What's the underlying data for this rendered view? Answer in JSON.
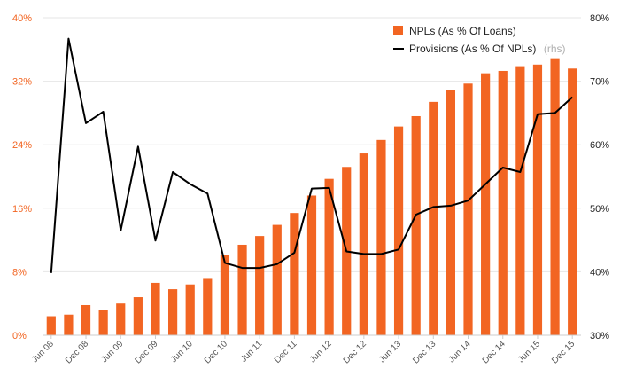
{
  "chart_data": {
    "type": "bar+line",
    "title": "",
    "x": [
      "Jun 08",
      "Sep 08",
      "Dec 08",
      "Mar 09",
      "Jun 09",
      "Sep 09",
      "Dec 09",
      "Mar 10",
      "Jun 10",
      "Sep 10",
      "Dec 10",
      "Mar 11",
      "Jun 11",
      "Sep 11",
      "Dec 11",
      "Mar 12",
      "Jun 12",
      "Sep 12",
      "Dec 12",
      "Mar 13",
      "Jun 13",
      "Sep 13",
      "Dec 13",
      "Mar 14",
      "Jun 14",
      "Sep 14",
      "Dec 14",
      "Mar 15",
      "Jun 15",
      "Sep 15",
      "Dec 15"
    ],
    "x_tick_labels": [
      "Jun 08",
      "Dec 08",
      "Jun 09",
      "Dec 09",
      "Jun 10",
      "Dec 10",
      "Jun 11",
      "Dec 11",
      "Jun 12",
      "Dec 12",
      "Jun 13",
      "Dec 13",
      "Jun 14",
      "Dec 14",
      "Jun 15",
      "Dec 15"
    ],
    "series": [
      {
        "name": "NPLs (As % Of Loans)",
        "type": "bar",
        "axis": "left",
        "color": "#f26522",
        "values": [
          2.4,
          2.6,
          3.8,
          3.2,
          4.0,
          4.8,
          6.6,
          5.8,
          6.4,
          7.1,
          10.1,
          11.4,
          12.5,
          13.9,
          15.4,
          17.6,
          19.7,
          21.2,
          22.9,
          24.6,
          26.3,
          27.6,
          29.4,
          30.9,
          31.7,
          33.0,
          33.3,
          33.9,
          34.1,
          34.9,
          33.6
        ]
      },
      {
        "name": "Provisions (As % Of NPLs)",
        "name_note": "(rhs)",
        "type": "line",
        "axis": "right",
        "color": "#000000",
        "values": [
          39.8,
          76.7,
          63.4,
          65.2,
          46.5,
          59.7,
          44.9,
          55.7,
          53.8,
          52.3,
          41.4,
          40.6,
          40.6,
          41.2,
          43.0,
          53.1,
          53.2,
          43.2,
          42.8,
          42.8,
          43.5,
          49.0,
          50.2,
          50.4,
          51.2,
          53.8,
          56.4,
          55.7,
          64.8,
          65.0,
          67.5
        ]
      }
    ],
    "y_left": {
      "ticks": [
        "0%",
        "8%",
        "16%",
        "24%",
        "32%",
        "40%"
      ],
      "range": [
        0,
        40
      ]
    },
    "y_right": {
      "ticks": [
        "30%",
        "40%",
        "50%",
        "60%",
        "70%",
        "80%"
      ],
      "range": [
        30,
        80
      ]
    },
    "grid": "horizontal",
    "legend": "top-right"
  }
}
